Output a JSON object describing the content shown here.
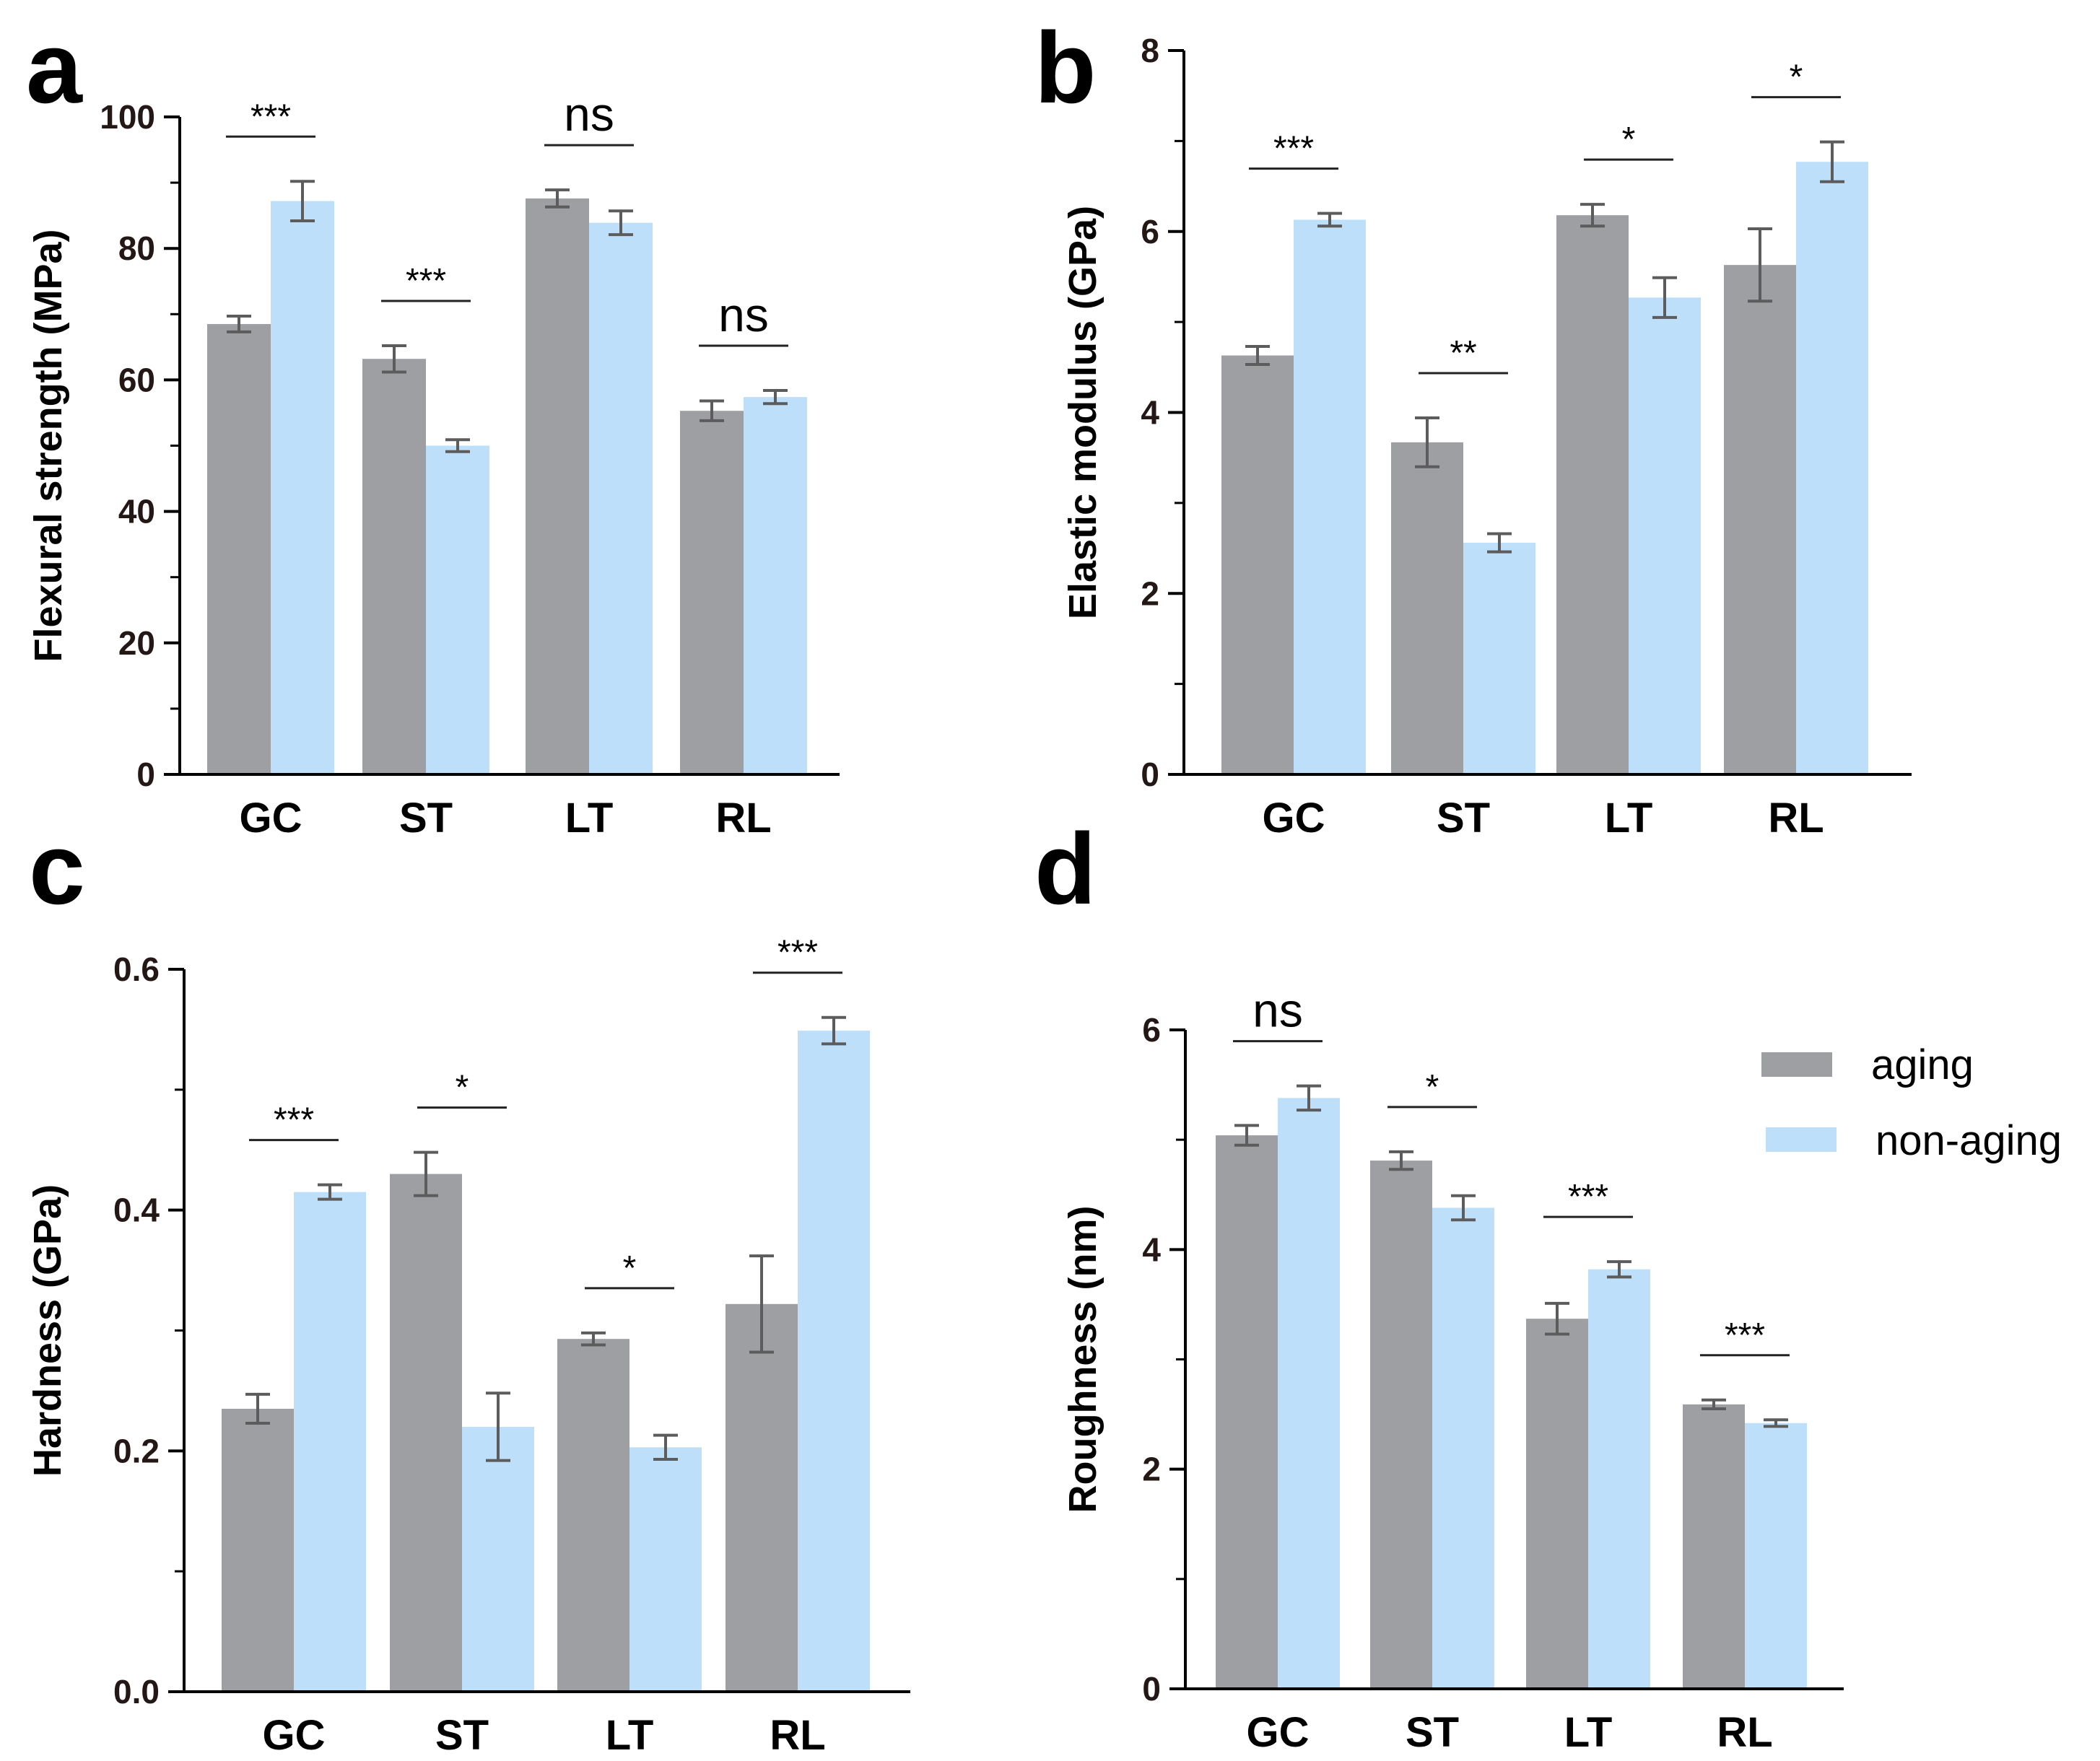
{
  "series": [
    {
      "name": "aging",
      "color": "#9e9fa3"
    },
    {
      "name": "non-aging",
      "color": "#bddff9"
    }
  ],
  "chart_data": [
    {
      "type": "bar",
      "panel": "a",
      "ylabel": "Flexural strength  (MPa)",
      "categories": [
        "GC",
        "ST",
        "LT",
        "RL"
      ],
      "ylim": [
        0,
        100
      ],
      "yticks": [
        "0",
        "20",
        "40",
        "60",
        "80",
        "100"
      ],
      "series": [
        {
          "name": "aging",
          "values": [
            68.5,
            63.2,
            87.6,
            55.3
          ],
          "errors": [
            1.2,
            2.0,
            1.3,
            1.5
          ]
        },
        {
          "name": "non-aging",
          "values": [
            87.2,
            50.0,
            83.9,
            57.4
          ],
          "errors": [
            3.0,
            0.9,
            1.8,
            1.0
          ]
        }
      ],
      "significance": [
        "***",
        "***",
        "ns",
        "ns"
      ]
    },
    {
      "type": "bar",
      "panel": "b",
      "ylabel": "Elastic modulus  (GPa)",
      "categories": [
        "GC",
        "ST",
        "LT",
        "RL"
      ],
      "ylim": [
        0,
        8
      ],
      "yticks": [
        "0",
        "2",
        "4",
        "6",
        "8"
      ],
      "series": [
        {
          "name": "aging",
          "values": [
            4.63,
            3.67,
            6.18,
            5.63
          ],
          "errors": [
            0.1,
            0.27,
            0.12,
            0.4
          ]
        },
        {
          "name": "non-aging",
          "values": [
            6.13,
            2.56,
            5.27,
            6.77
          ],
          "errors": [
            0.07,
            0.1,
            0.22,
            0.22
          ]
        }
      ],
      "significance": [
        "***",
        "**",
        "*",
        "*"
      ]
    },
    {
      "type": "bar",
      "panel": "c",
      "ylabel": "Hardness (GPa)",
      "categories": [
        "GC",
        "ST",
        "LT",
        "RL"
      ],
      "ylim": [
        0,
        0.6
      ],
      "yticks": [
        "0.0",
        "0.2",
        "0.4",
        "0.6"
      ],
      "series": [
        {
          "name": "aging",
          "values": [
            0.235,
            0.43,
            0.293,
            0.322
          ],
          "errors": [
            0.012,
            0.018,
            0.005,
            0.04
          ]
        },
        {
          "name": "non-aging",
          "values": [
            0.415,
            0.22,
            0.203,
            0.549
          ],
          "errors": [
            0.006,
            0.028,
            0.01,
            0.011
          ]
        }
      ],
      "significance": [
        "***",
        "*",
        "*",
        "***"
      ]
    },
    {
      "type": "bar",
      "panel": "d",
      "ylabel": "Roughness (nm)",
      "categories": [
        "GC",
        "ST",
        "LT",
        "RL"
      ],
      "ylim": [
        0,
        6
      ],
      "yticks": [
        "0",
        "2",
        "4",
        "6"
      ],
      "series": [
        {
          "name": "aging",
          "values": [
            5.04,
            4.81,
            3.37,
            2.59
          ],
          "errors": [
            0.09,
            0.08,
            0.14,
            0.04
          ]
        },
        {
          "name": "non-aging",
          "values": [
            5.38,
            4.38,
            3.82,
            2.42
          ],
          "errors": [
            0.11,
            0.11,
            0.07,
            0.03
          ]
        }
      ],
      "significance": [
        "ns",
        "*",
        "***",
        "***"
      ]
    }
  ]
}
